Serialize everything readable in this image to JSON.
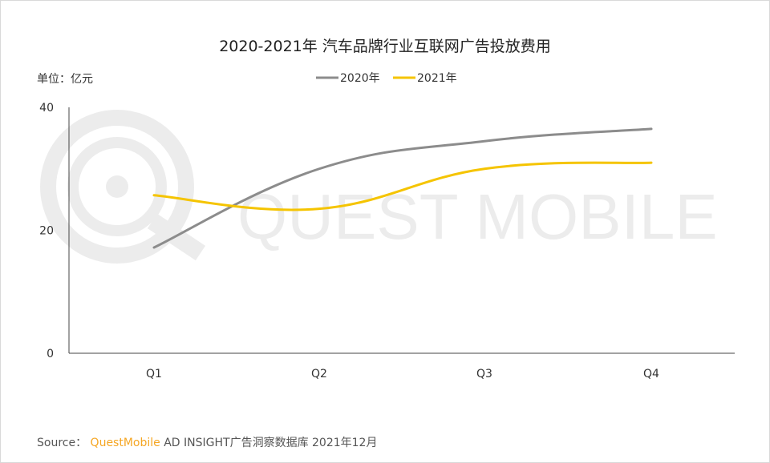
{
  "chart_data": {
    "type": "line",
    "title": "2020-2021年 汽车品牌行业互联网广告投放费用",
    "unit_label": "单位：亿元",
    "categories": [
      "Q1",
      "Q2",
      "Q3",
      "Q4"
    ],
    "ylim": [
      0,
      40
    ],
    "yticks": [
      "0",
      "20",
      "40"
    ],
    "grid": false,
    "legend_position": "top-center",
    "smooth": true,
    "series": [
      {
        "name": "2020年",
        "values": [
          17.2,
          30.0,
          34.5,
          36.5
        ],
        "color": "#8c8c8c"
      },
      {
        "name": "2021年",
        "values": [
          25.7,
          23.5,
          30.0,
          31.0
        ],
        "color": "#f5c400"
      }
    ]
  },
  "watermark": {
    "text": "QUEST MOBILE"
  },
  "source": {
    "prefix": "Source：",
    "brand": "QuestMobile",
    "rest": "AD INSIGHT广告洞察数据库 2021年12月"
  }
}
